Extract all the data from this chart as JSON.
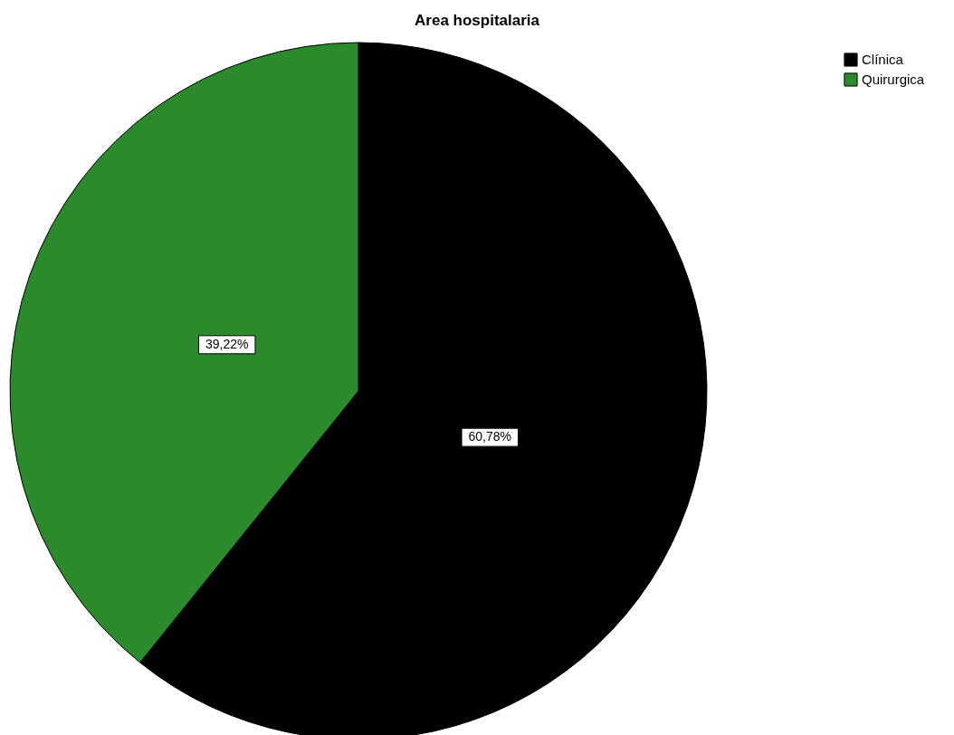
{
  "chart_data": {
    "type": "pie",
    "title": "Area hospitalaria",
    "categories": [
      "Clínica",
      "Quirurgica"
    ],
    "values": [
      60.78,
      39.22
    ],
    "colors": [
      "#000000",
      "#2b8a2b"
    ],
    "value_labels": [
      "60,78%",
      "39,22%"
    ],
    "legend": "top right"
  }
}
